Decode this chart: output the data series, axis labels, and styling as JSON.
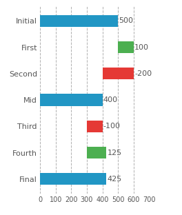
{
  "categories": [
    "Initial",
    "First",
    "Second",
    "Mid",
    "Third",
    "Fourth",
    "Final"
  ],
  "bar_starts": [
    0,
    500,
    400,
    0,
    300,
    300,
    0
  ],
  "bar_widths": [
    500,
    100,
    200,
    400,
    100,
    125,
    425
  ],
  "bar_colors": [
    "#2196c4",
    "#4caf50",
    "#e53935",
    "#2196c4",
    "#e53935",
    "#4caf50",
    "#2196c4"
  ],
  "labels": [
    "500",
    "100",
    "-200",
    "400",
    "-100",
    "125",
    "425"
  ],
  "xlim": [
    0,
    700
  ],
  "xticks": [
    0,
    100,
    200,
    300,
    400,
    500,
    600,
    700
  ],
  "bg_color": "#ffffff",
  "grid_color": "#b0b0b0",
  "label_fontsize": 8,
  "tick_fontsize": 7,
  "bar_height": 0.45,
  "figsize": [
    2.64,
    3.12
  ],
  "dpi": 100
}
